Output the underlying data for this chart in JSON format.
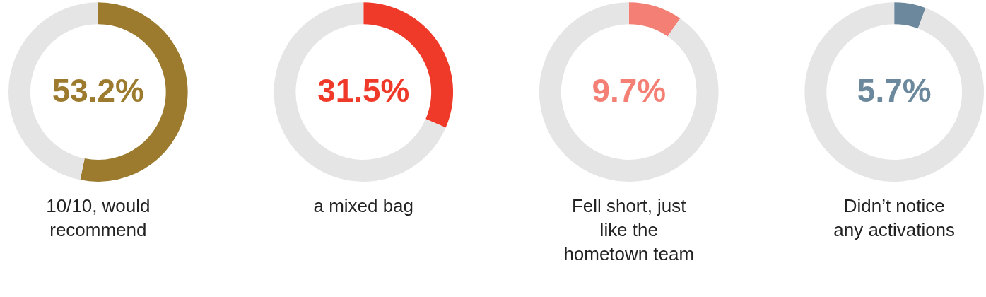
{
  "chart_data": [
    {
      "type": "donut",
      "title": "10/10, would recommend",
      "categories": [
        null,
        null
      ],
      "values": [
        53.2,
        46.8
      ],
      "colors": [
        "#9c7b2e",
        "#e5e5e5"
      ],
      "value_labels": [
        "53.2%",
        null
      ]
    },
    {
      "type": "donut",
      "title": "a mixed bag",
      "categories": [
        null,
        null
      ],
      "values": [
        31.5,
        68.5
      ],
      "colors": [
        "#ef3a2a",
        "#e5e5e5"
      ],
      "value_labels": [
        "31.5%",
        null
      ]
    },
    {
      "type": "donut",
      "title": "Fell short, just like the hometown team",
      "categories": [
        null,
        null
      ],
      "values": [
        9.7,
        90.3
      ],
      "colors": [
        "#f47f74",
        "#e5e5e5"
      ],
      "value_labels": [
        "9.7%",
        null
      ]
    },
    {
      "type": "donut",
      "title": "Didn’t notice any activations",
      "categories": [
        null,
        null
      ],
      "values": [
        5.7,
        94.3
      ],
      "colors": [
        "#6b889c",
        "#e5e5e5"
      ],
      "value_labels": [
        "5.7%",
        null
      ]
    }
  ]
}
